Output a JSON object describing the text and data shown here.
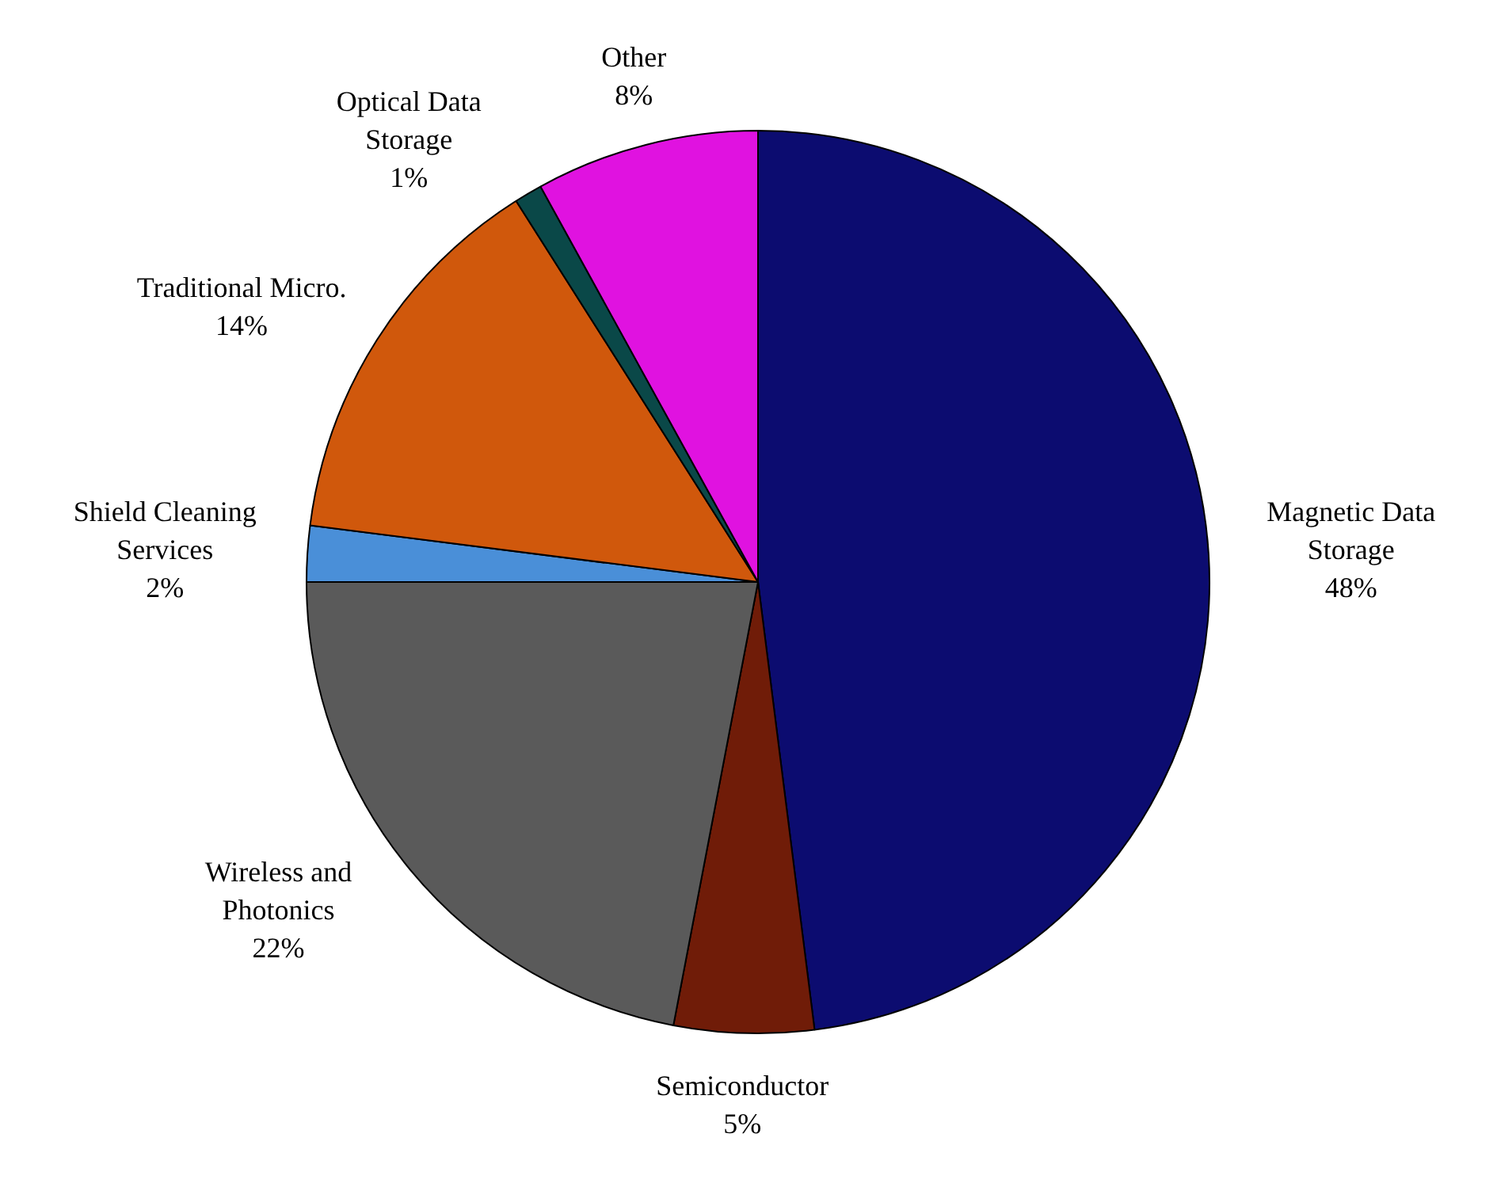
{
  "chart_data": {
    "type": "pie",
    "categories": [
      "Magnetic Data Storage",
      "Semiconductor",
      "Wireless and Photonics",
      "Shield Cleaning Services",
      "Traditional Micro.",
      "Optical Data Storage",
      "Other"
    ],
    "values": [
      48,
      5,
      22,
      2,
      14,
      1,
      8
    ],
    "value_labels": [
      "48%",
      "5%",
      "22%",
      "2%",
      "14%",
      "1%",
      "8%"
    ],
    "colors": [
      "#0c0c70",
      "#701c08",
      "#5a5a5a",
      "#4a8fd8",
      "#d0580c",
      "#0a4848",
      "#e012e0"
    ]
  }
}
